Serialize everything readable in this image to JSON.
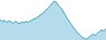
{
  "chart_data": {
    "type": "area",
    "values": [
      55,
      52,
      54,
      50,
      53,
      51,
      48,
      52,
      50,
      47,
      51,
      49,
      52,
      50,
      53,
      55,
      57,
      59,
      62,
      65,
      68,
      72,
      76,
      80,
      85,
      90,
      88,
      82,
      78,
      72,
      65,
      58,
      52,
      46,
      40,
      35,
      30,
      26,
      22,
      20,
      18,
      22,
      25,
      28,
      26,
      30,
      33,
      36,
      34,
      38
    ],
    "color": "#2196c4",
    "xlim": [
      0,
      49
    ],
    "ylim": [
      17,
      92
    ],
    "grid": false,
    "tick_labels": false
  }
}
